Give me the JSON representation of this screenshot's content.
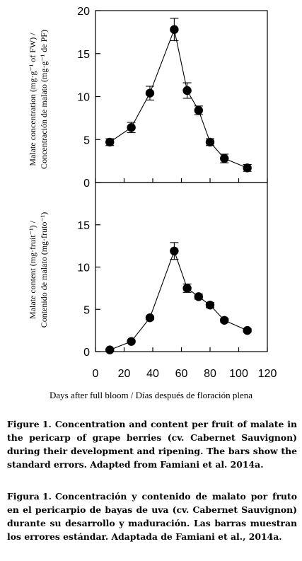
{
  "chart_data": [
    {
      "type": "scatter",
      "ylabel_en": "Malate concentration (mg·g⁻¹ of FW) /",
      "ylabel_es": "Concentración de malato (mg·g⁻¹ de PF)",
      "xlim": [
        0,
        120
      ],
      "ylim": [
        0,
        20
      ],
      "yticks": [
        "0",
        "5",
        "10",
        "15",
        "20"
      ],
      "x": [
        10,
        25,
        38,
        55,
        64,
        72,
        80,
        90,
        106
      ],
      "y": [
        4.7,
        6.4,
        10.4,
        17.8,
        10.7,
        8.4,
        4.7,
        2.8,
        1.7
      ],
      "err": [
        0.4,
        0.6,
        0.8,
        1.3,
        0.9,
        0.5,
        0.4,
        0.5,
        0.4
      ]
    },
    {
      "type": "scatter",
      "ylabel_en": "Malate content (mg·fruit⁻¹) /",
      "ylabel_es": "Contenido de malato (mg·fruto⁻¹)",
      "xlim": [
        0,
        120
      ],
      "ylim": [
        0,
        20
      ],
      "yticks": [
        "0",
        "5",
        "10",
        "15"
      ],
      "xticks": [
        "0",
        "20",
        "40",
        "60",
        "80",
        "100",
        "120"
      ],
      "x": [
        10,
        25,
        38,
        55,
        64,
        72,
        80,
        90,
        106
      ],
      "y": [
        0.2,
        1.2,
        4.0,
        11.9,
        7.5,
        6.5,
        5.5,
        3.7,
        2.5
      ],
      "err": [
        0.1,
        0.1,
        0.2,
        1.0,
        0.5,
        0.3,
        0.3,
        0.2,
        0.2
      ]
    }
  ],
  "xlabel": "Days after full bloom / Días después de floración plena",
  "caption_en": {
    "label": "Figure 1.",
    "text": "Concentration and content per fruit of malate in the pericarp of grape berries (cv. Cabernet Sauvignon) during their development and ripening. The bars show the standard errors. Adapted from Famiani et al. 2014a."
  },
  "caption_es": {
    "label": "Figura 1.",
    "text": "Concentración y contenido de malato por fruto en el pericarpio de bayas de uva (cv. Cabernet Sauvignon) durante su desarrollo y maduración. Las barras muestran los errores estándar. Adaptada de Famiani et al., 2014a."
  }
}
